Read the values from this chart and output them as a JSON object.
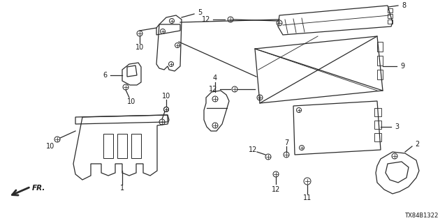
{
  "bg_color": "#ffffff",
  "line_color": "#2a2a2a",
  "text_color": "#1a1a1a",
  "diagram_id": "TX84B1322",
  "figsize": [
    6.4,
    3.2
  ],
  "dpi": 100
}
